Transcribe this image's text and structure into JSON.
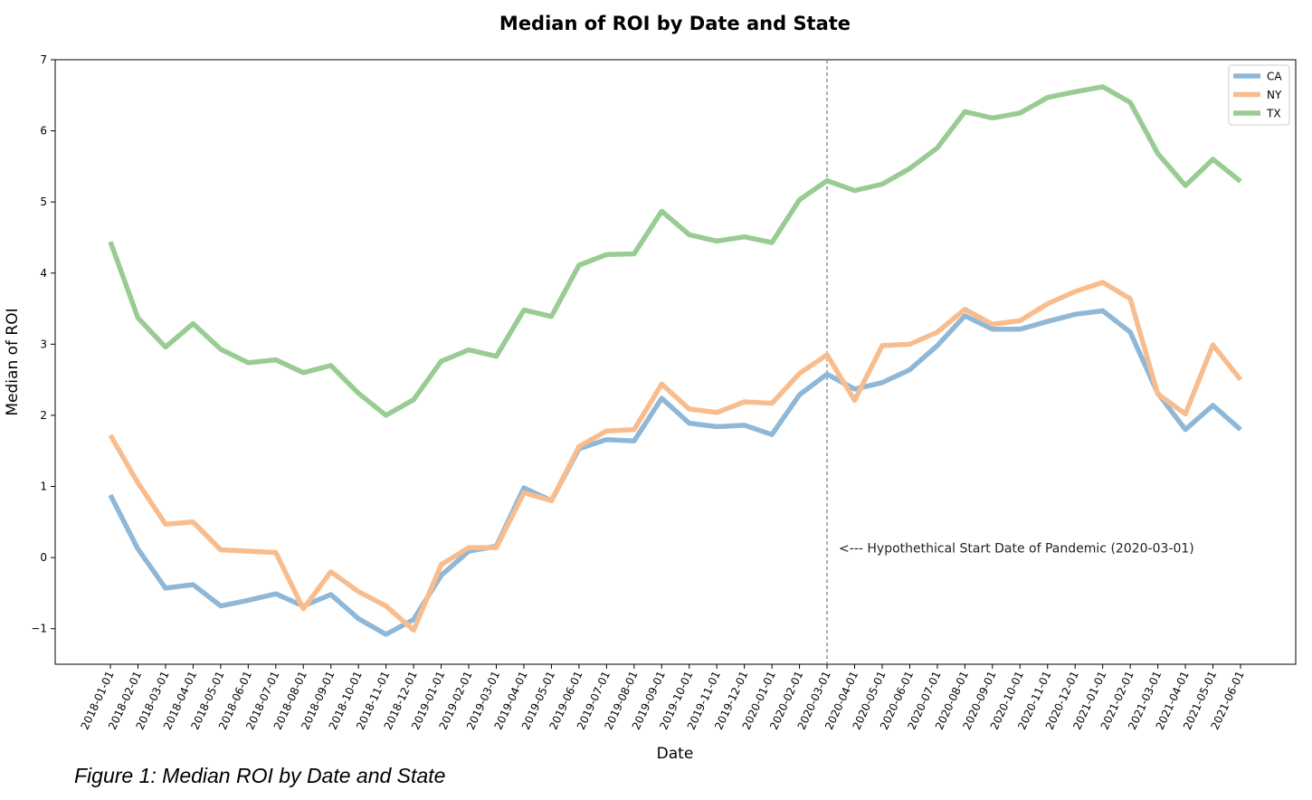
{
  "chart_data": {
    "type": "line",
    "title": "Median of ROI by Date and State",
    "xlabel": "Date",
    "ylabel": "Median of ROI",
    "ylim": [
      -1.5,
      7
    ],
    "yticks": [
      -1,
      0,
      1,
      2,
      3,
      4,
      5,
      6,
      7
    ],
    "grid": false,
    "legend_position": "top-right",
    "x": [
      "2018-01-01",
      "2018-02-01",
      "2018-03-01",
      "2018-04-01",
      "2018-05-01",
      "2018-06-01",
      "2018-07-01",
      "2018-08-01",
      "2018-09-01",
      "2018-10-01",
      "2018-11-01",
      "2018-12-01",
      "2019-01-01",
      "2019-02-01",
      "2019-03-01",
      "2019-04-01",
      "2019-05-01",
      "2019-06-01",
      "2019-07-01",
      "2019-08-01",
      "2019-09-01",
      "2019-10-01",
      "2019-11-01",
      "2019-12-01",
      "2020-01-01",
      "2020-02-01",
      "2020-03-01",
      "2020-04-01",
      "2020-05-01",
      "2020-06-01",
      "2020-07-01",
      "2020-08-01",
      "2020-09-01",
      "2020-10-01",
      "2020-11-01",
      "2020-12-01",
      "2021-01-01",
      "2021-02-01",
      "2021-03-01",
      "2021-04-01",
      "2021-05-01",
      "2021-06-01"
    ],
    "series": [
      {
        "name": "CA",
        "color": "#8fb8d8",
        "values": [
          0.88,
          0.12,
          -0.43,
          -0.38,
          -0.68,
          -0.6,
          -0.51,
          -0.68,
          -0.52,
          -0.86,
          -1.08,
          -0.87,
          -0.25,
          0.09,
          0.16,
          0.98,
          0.8,
          1.53,
          1.66,
          1.64,
          2.24,
          1.89,
          1.84,
          1.86,
          1.73,
          2.29,
          2.58,
          2.37,
          2.46,
          2.64,
          2.98,
          3.4,
          3.21,
          3.21,
          3.32,
          3.42,
          3.47,
          3.17,
          2.31,
          1.8,
          2.14,
          1.8
        ]
      },
      {
        "name": "NY",
        "color": "#f8bd8f",
        "values": [
          1.72,
          1.05,
          0.47,
          0.5,
          0.11,
          0.09,
          0.07,
          -0.72,
          -0.2,
          -0.48,
          -0.68,
          -1.02,
          -0.1,
          0.14,
          0.14,
          0.91,
          0.8,
          1.56,
          1.78,
          1.8,
          2.44,
          2.09,
          2.04,
          2.19,
          2.17,
          2.59,
          2.85,
          2.21,
          2.98,
          3.0,
          3.17,
          3.49,
          3.28,
          3.33,
          3.57,
          3.74,
          3.87,
          3.64,
          2.3,
          2.02,
          2.99,
          2.5
        ]
      },
      {
        "name": "TX",
        "color": "#99cc92",
        "values": [
          4.44,
          3.37,
          2.96,
          3.29,
          2.93,
          2.74,
          2.78,
          2.6,
          2.7,
          2.31,
          2.0,
          2.22,
          2.76,
          2.92,
          2.83,
          3.48,
          3.39,
          4.11,
          4.26,
          4.27,
          4.87,
          4.54,
          4.45,
          4.51,
          4.43,
          5.03,
          5.3,
          5.16,
          5.25,
          5.47,
          5.76,
          6.27,
          6.18,
          6.25,
          6.47,
          6.55,
          6.62,
          6.4,
          5.68,
          5.23,
          5.6,
          5.29
        ]
      }
    ],
    "annotations": [
      {
        "text": "<--- Hypothethical Start Date of Pandemic (2020-03-01)",
        "x": "2020-03-01",
        "y": 0.07,
        "vline": true
      }
    ]
  },
  "caption": "Figure 1: Median ROI by Date and State"
}
